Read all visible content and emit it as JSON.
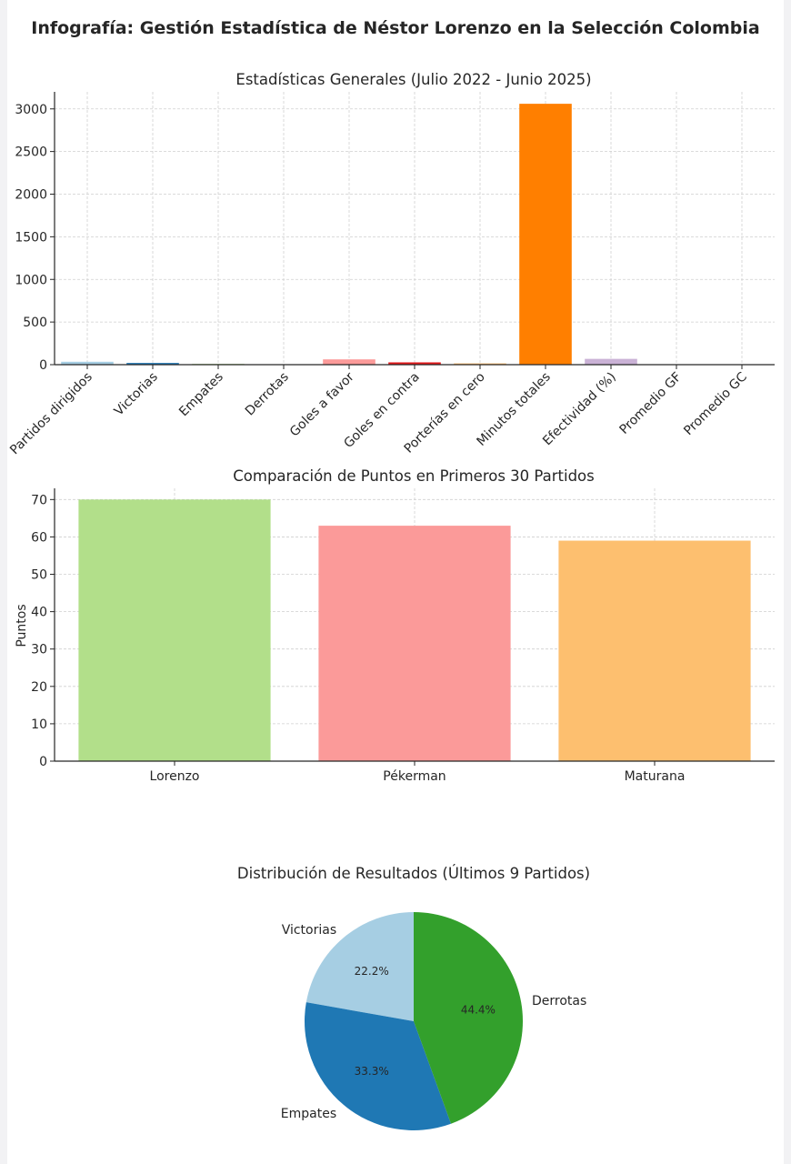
{
  "page": {
    "title": "Infografía: Gestión Estadística de Néstor Lorenzo en la Selección Colombia"
  },
  "chart_data": [
    {
      "type": "bar",
      "title": "Estadísticas Generales (Julio 2022 - Junio 2025)",
      "xlabel": "",
      "ylabel": "",
      "ylim": [
        0,
        3200
      ],
      "yticks": [
        0,
        500,
        1000,
        1500,
        2000,
        2500,
        3000
      ],
      "grid": true,
      "categories": [
        "Partidos dirigidos",
        "Victorias",
        "Empates",
        "Derrotas",
        "Goles a favor",
        "Goles en contra",
        "Porterías en cero",
        "Minutos totales",
        "Efectividad (%)",
        "Promedio GF",
        "Promedio GC"
      ],
      "values": [
        34,
        20,
        9,
        5,
        62,
        27,
        15,
        3060,
        68,
        1.8,
        0.8
      ],
      "colors": [
        "#a6cee3",
        "#1f78b4",
        "#b2df8a",
        "#33a02c",
        "#fb9a99",
        "#e31a1c",
        "#fdbf6f",
        "#ff7f00",
        "#cab2d6",
        "#6a3d9a",
        "#ffff99"
      ]
    },
    {
      "type": "bar",
      "title": "Comparación de Puntos en Primeros 30 Partidos",
      "xlabel": "",
      "ylabel": "Puntos",
      "ylim": [
        0,
        73
      ],
      "yticks": [
        0,
        10,
        20,
        30,
        40,
        50,
        60,
        70
      ],
      "grid": true,
      "categories": [
        "Lorenzo",
        "Pékerman",
        "Maturana"
      ],
      "values": [
        70,
        63,
        59
      ],
      "colors": [
        "#b2df8a",
        "#fb9a99",
        "#fdbf6f"
      ]
    },
    {
      "type": "pie",
      "title": "Distribución de Resultados (Últimos 9 Partidos)",
      "labels": [
        "Victorias",
        "Empates",
        "Derrotas"
      ],
      "values": [
        2,
        3,
        4
      ],
      "percent_labels": [
        "22.2%",
        "33.3%",
        "44.4%"
      ],
      "colors": [
        "#a6cee3",
        "#1f78b4",
        "#33a02c"
      ]
    }
  ]
}
